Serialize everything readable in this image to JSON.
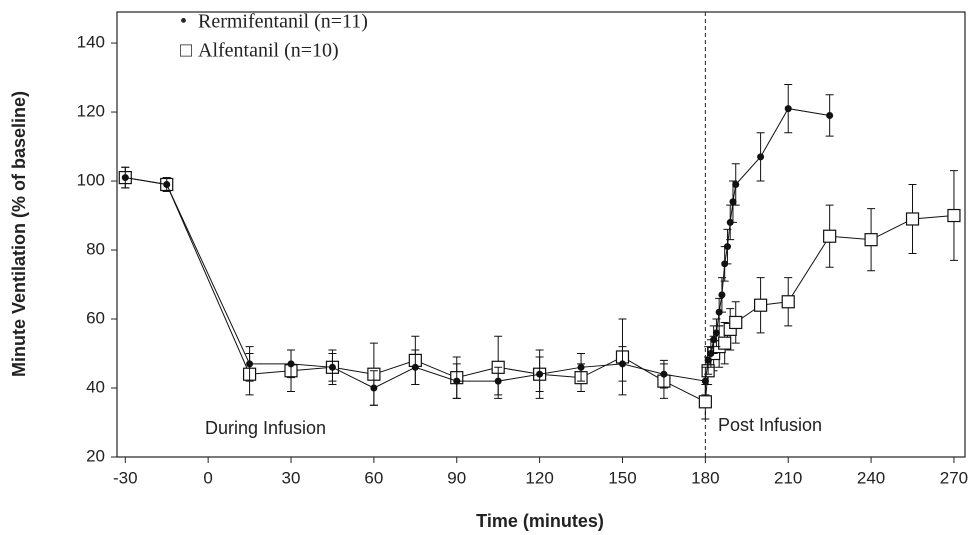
{
  "chart_data": {
    "type": "line",
    "xlabel": "Time (minutes)",
    "ylabel": "Minute Ventilation (% of baseline)",
    "xlim": [
      -33,
      274
    ],
    "ylim": [
      20,
      149
    ],
    "xticks": [
      -30,
      0,
      30,
      60,
      90,
      120,
      150,
      180,
      210,
      240,
      270
    ],
    "yticks": [
      20,
      40,
      60,
      80,
      100,
      120,
      140
    ],
    "vline": 180,
    "annotations": [
      "During Infusion",
      "Post Infusion"
    ],
    "series": [
      {
        "name": "Rermifentanil (n=11)",
        "legend_symbol": "•",
        "marker": "circle",
        "color": "#111111",
        "x": [
          -30,
          -15,
          15,
          30,
          45,
          60,
          75,
          90,
          105,
          120,
          135,
          150,
          165,
          180,
          181,
          182,
          183,
          184,
          185,
          186,
          187,
          188,
          189,
          190,
          191,
          200,
          210,
          225
        ],
        "values": [
          101,
          99,
          47,
          47,
          46,
          40,
          46,
          42,
          42,
          44,
          46,
          47,
          44,
          42,
          48,
          50,
          54,
          56,
          62,
          67,
          76,
          81,
          88,
          94,
          99,
          107,
          121,
          119
        ],
        "errors": [
          3,
          2,
          5,
          4,
          4,
          5,
          5,
          5,
          4,
          5,
          4,
          5,
          4,
          4,
          4,
          4,
          4,
          4,
          4,
          5,
          5,
          5,
          5,
          6,
          6,
          7,
          7,
          6
        ]
      },
      {
        "name": "Alfentanil (n=10)",
        "legend_symbol": "□",
        "marker": "square",
        "color": "#111111",
        "x": [
          -30,
          -15,
          15,
          30,
          45,
          60,
          75,
          90,
          105,
          120,
          135,
          150,
          165,
          180,
          181,
          183,
          185,
          187,
          189,
          191,
          200,
          210,
          225,
          240,
          255,
          270
        ],
        "values": [
          101,
          99,
          44,
          45,
          46,
          44,
          48,
          43,
          46,
          44,
          43,
          49,
          42,
          36,
          45,
          50,
          52,
          53,
          57,
          59,
          64,
          65,
          84,
          83,
          89,
          90
        ],
        "errors": [
          3,
          2,
          6,
          6,
          5,
          9,
          7,
          6,
          9,
          7,
          4,
          11,
          5,
          5,
          4,
          5,
          6,
          6,
          6,
          6,
          8,
          7,
          9,
          9,
          10,
          13
        ]
      }
    ]
  }
}
